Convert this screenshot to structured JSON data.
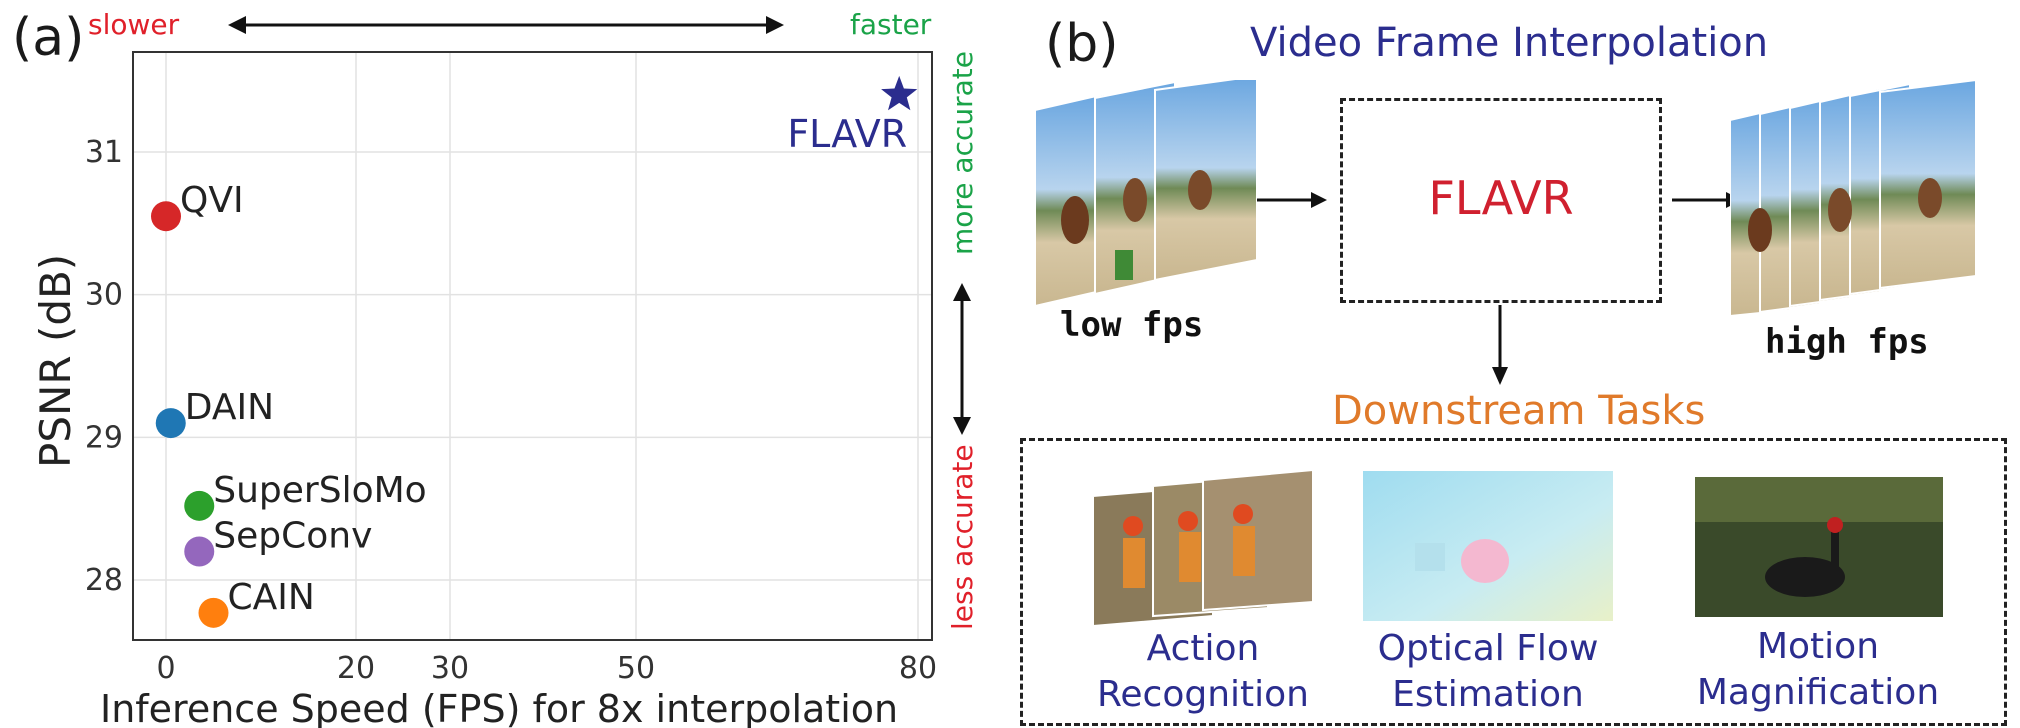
{
  "panel_a": {
    "label": "(a)",
    "slower_label": "slower",
    "faster_label": "faster",
    "more_accurate_label": "more accurate",
    "less_accurate_label": "less accurate"
  },
  "panel_b": {
    "label": "(b)",
    "title": "Video Frame Interpolation",
    "low_fps_label": "low fps",
    "high_fps_label": "high fps",
    "model_name": "FLAVR",
    "downstream_title": "Downstream Tasks",
    "tasks": [
      {
        "line1": "Action",
        "line2": "Recognition"
      },
      {
        "line1": "Optical Flow",
        "line2": "Estimation"
      },
      {
        "line1": "Motion",
        "line2": "Magnification"
      }
    ]
  },
  "chart_data": {
    "type": "scatter",
    "title": "",
    "xlabel": "Inference Speed (FPS) for 8x interpolation",
    "ylabel": "PSNR (dB)",
    "x_ticks": [
      "0",
      "20",
      "30",
      "50",
      "80"
    ],
    "y_ticks": [
      "28",
      "29",
      "30",
      "31"
    ],
    "ylim": [
      27.6,
      31.7
    ],
    "grid": true,
    "points": [
      {
        "name": "FLAVR",
        "x": 78,
        "y": 31.4,
        "color": "#2b2d8e",
        "marker": "star"
      },
      {
        "name": "QVI",
        "x": 0,
        "y": 30.55,
        "color": "#d62728",
        "marker": "circle"
      },
      {
        "name": "DAIN",
        "x": 0.5,
        "y": 29.1,
        "color": "#1f77b4",
        "marker": "circle"
      },
      {
        "name": "SuperSloMo",
        "x": 3.5,
        "y": 28.52,
        "color": "#2ca02c",
        "marker": "circle"
      },
      {
        "name": "SepConv",
        "x": 3.5,
        "y": 28.2,
        "color": "#9467bd",
        "marker": "circle"
      },
      {
        "name": "CAIN",
        "x": 5,
        "y": 27.77,
        "color": "#ff7f0e",
        "marker": "circle"
      }
    ]
  }
}
